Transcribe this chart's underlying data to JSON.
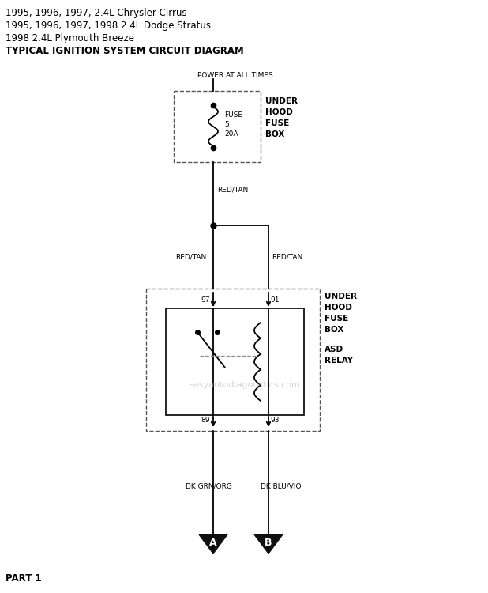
{
  "title_lines": [
    "1995, 1996, 1997, 2.4L Chrysler Cirrus",
    "1995, 1996, 1997, 1998 2.4L Dodge Stratus",
    "1998 2.4L Plymouth Breeze",
    "TYPICAL IGNITION SYSTEM CIRCUIT DIAGRAM"
  ],
  "watermark": "easyautodiagnostics.com",
  "part_label": "PART 1",
  "bg_color": "#ffffff",
  "line_color": "#000000",
  "text_color": "#000000",
  "arrow_A_label": "A",
  "arrow_B_label": "B",
  "wire_label_red_tan": "RED/TAN",
  "wire_label_dk_grn": "DK GRN/ORG",
  "wire_label_dk_blu": "DK BLU/VIO",
  "fuse_label1": "FUSE",
  "fuse_label2": "5",
  "fuse_label3": "20A",
  "under_hood_fuse_box_label": [
    "UNDER",
    "HOOD",
    "FUSE",
    "BOX"
  ],
  "under_hood_fuse_box2_label": [
    "UNDER",
    "HOOD",
    "FUSE",
    "BOX"
  ],
  "asd_relay_label": [
    "ASD",
    "RELAY"
  ],
  "power_label": "POWER AT ALL TIMES",
  "pin97": "97",
  "pin91": "91",
  "pin89": "89",
  "pin93": "93"
}
